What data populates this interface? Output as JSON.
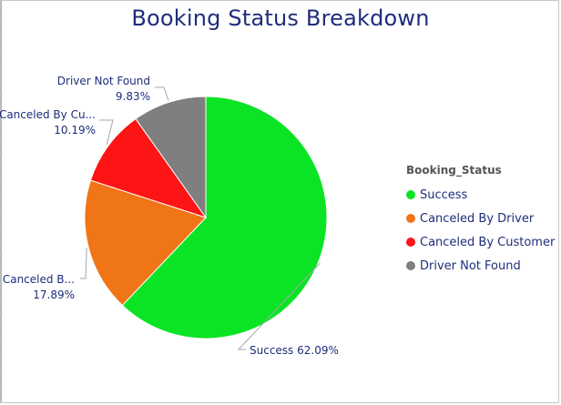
{
  "chart_data": {
    "type": "pie",
    "title": "Booking Status Breakdown",
    "legend_title": "Booking_Status",
    "legend_position": "right",
    "slices": [
      {
        "name": "Success",
        "percent": 62.09,
        "label": "Success 62.09%",
        "color": "#0be425"
      },
      {
        "name": "Canceled By Driver",
        "percent": 17.89,
        "label": "Canceled B...",
        "pct_label": "17.89%",
        "color": "#f07517"
      },
      {
        "name": "Canceled By Customer",
        "percent": 10.19,
        "label": "Canceled By Cu...",
        "pct_label": "10.19%",
        "color": "#fd1414"
      },
      {
        "name": "Driver Not Found",
        "percent": 9.83,
        "label": "Driver Not Found",
        "pct_label": "9.83%",
        "color": "#7f7f7f"
      }
    ]
  }
}
